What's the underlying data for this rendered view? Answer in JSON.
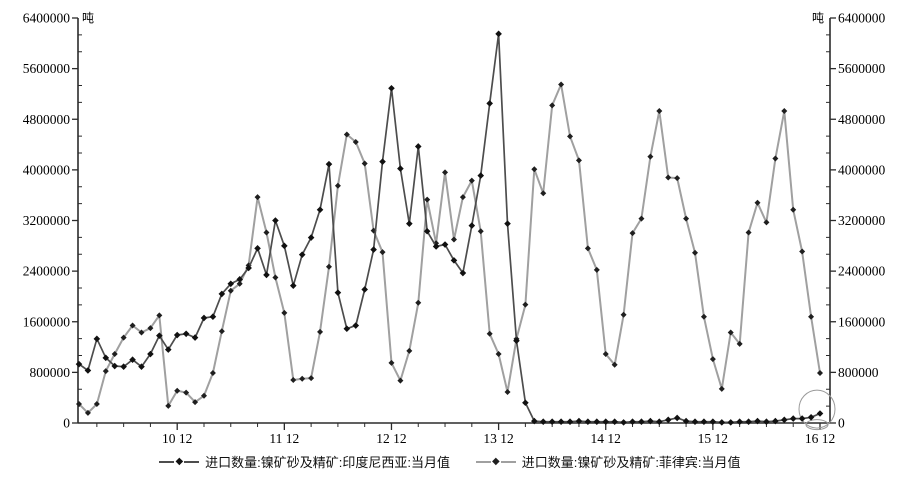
{
  "chart_data": {
    "type": "line",
    "title": "",
    "unit": "吨",
    "x_start_month": "2010-01",
    "x_end_month": "2016-12",
    "x_count": 84,
    "x_tick_labels": [
      "10 12",
      "11 12",
      "12 12",
      "13 12",
      "14 12",
      "15 12",
      "16 12"
    ],
    "x_tick_indices": [
      11,
      23,
      35,
      47,
      59,
      71,
      83
    ],
    "x_minor_tick_step_months": 3,
    "ylim": [
      0,
      6400000
    ],
    "y_tick_step": 800000,
    "y_minor_per_major": 3,
    "y_tick_labels": [
      "0",
      "800000",
      "1600000",
      "2400000",
      "3200000",
      "4000000",
      "4800000",
      "5600000",
      "6400000"
    ],
    "grid": false,
    "legend_position": "bottom",
    "axis_color": "#2b2b2b",
    "series": [
      {
        "name": "进口数量:镍矿砂及精矿:印度尼西亚:当月值",
        "color": "#4d4d4d",
        "marker": "diamond",
        "marker_color": "#111111",
        "values": [
          930000,
          830000,
          1330000,
          1030000,
          900000,
          890000,
          1000000,
          890000,
          1090000,
          1380000,
          1160000,
          1390000,
          1410000,
          1350000,
          1660000,
          1680000,
          2040000,
          2200000,
          2270000,
          2450000,
          2760000,
          2340000,
          3200000,
          2800000,
          2170000,
          2660000,
          2930000,
          3370000,
          4090000,
          2060000,
          1490000,
          1540000,
          2110000,
          2740000,
          4130000,
          5290000,
          4020000,
          3150000,
          4370000,
          3030000,
          2790000,
          2820000,
          2570000,
          2370000,
          3120000,
          3910000,
          5050000,
          6150000,
          3150000,
          1300000,
          320000,
          30000,
          20000,
          20000,
          20000,
          20000,
          30000,
          20000,
          20000,
          20000,
          20000,
          10000,
          20000,
          20000,
          30000,
          20000,
          50000,
          80000,
          30000,
          20000,
          20000,
          20000,
          10000,
          10000,
          20000,
          20000,
          30000,
          20000,
          30000,
          50000,
          70000,
          70000,
          90000,
          150000
        ]
      },
      {
        "name": "进口数量:镍矿砂及精矿:菲律宾:当月值",
        "color": "#a0a0a0",
        "marker": "diamond",
        "marker_color": "#1f1f1f",
        "values": [
          300000,
          160000,
          300000,
          820000,
          1090000,
          1350000,
          1540000,
          1430000,
          1500000,
          1700000,
          270000,
          510000,
          480000,
          330000,
          430000,
          790000,
          1450000,
          2090000,
          2200000,
          2490000,
          3570000,
          3010000,
          2300000,
          1740000,
          680000,
          700000,
          710000,
          1440000,
          2470000,
          3750000,
          4560000,
          4440000,
          4100000,
          3040000,
          2700000,
          950000,
          670000,
          1140000,
          1900000,
          3530000,
          2840000,
          3960000,
          2900000,
          3570000,
          3830000,
          3030000,
          1410000,
          1090000,
          490000,
          1330000,
          1870000,
          4010000,
          3630000,
          5020000,
          5350000,
          4530000,
          4150000,
          2760000,
          2420000,
          1090000,
          920000,
          1710000,
          3000000,
          3230000,
          4210000,
          4930000,
          3880000,
          3870000,
          3230000,
          2690000,
          1680000,
          1010000,
          540000,
          1430000,
          1250000,
          3010000,
          3480000,
          3170000,
          4180000,
          4930000,
          3370000,
          2710000,
          1680000,
          790000
        ]
      }
    ],
    "annotation_circles": [
      {
        "x_index": 83,
        "y_value": 220000,
        "rx": 18,
        "ry": 19,
        "color": "#9a9a9a"
      },
      {
        "x_index": 83,
        "y_value": -25000,
        "rx": 11,
        "ry": 5,
        "color": "#9a9a9a"
      }
    ]
  }
}
